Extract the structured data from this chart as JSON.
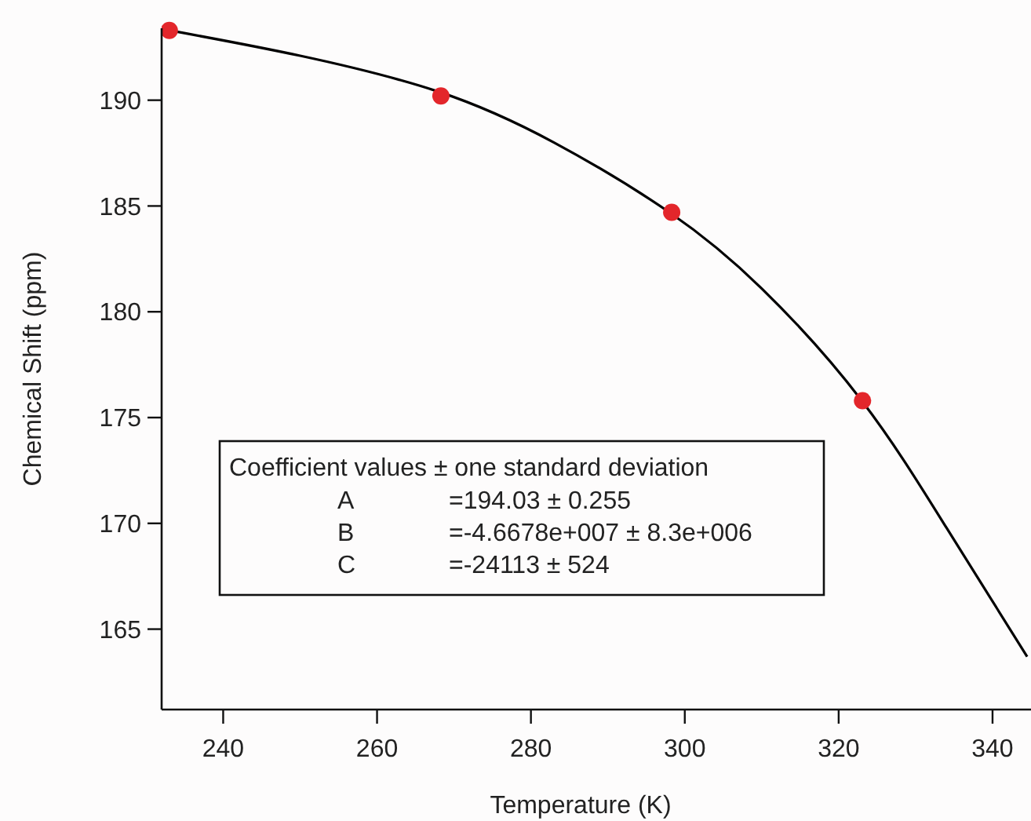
{
  "chart_data": {
    "type": "scatter",
    "xlabel": "Temperature (K)",
    "ylabel": "Chemical Shift (ppm)",
    "xlim": [
      232,
      345
    ],
    "xticks": [
      240,
      260,
      280,
      300,
      320,
      340
    ],
    "ylim": [
      161.2,
      193.4
    ],
    "yticks": [
      165,
      170,
      175,
      180,
      185,
      190
    ],
    "grid": false,
    "series": [
      {
        "color": "#e3262b",
        "marker": "circle",
        "x": [
          233,
          268.3,
          298.3,
          323.1
        ],
        "values": [
          193.3,
          190.2,
          184.7,
          175.8
        ]
      },
      {
        "type": "line",
        "color": "#000000",
        "x": [
          233,
          250,
          268,
          283,
          298,
          310,
          323,
          334,
          344.5
        ],
        "values": [
          193.3,
          192.1,
          190.4,
          188.0,
          184.7,
          181.1,
          175.8,
          169.8,
          163.7
        ]
      }
    ],
    "annotations": [
      "Coefficient values ± one standard deviation",
      "A",
      "=194.03 ± 0.255",
      "B",
      "=-4.6678e+007 ± 8.3e+006",
      "C",
      "=-24113 ± 524"
    ]
  }
}
